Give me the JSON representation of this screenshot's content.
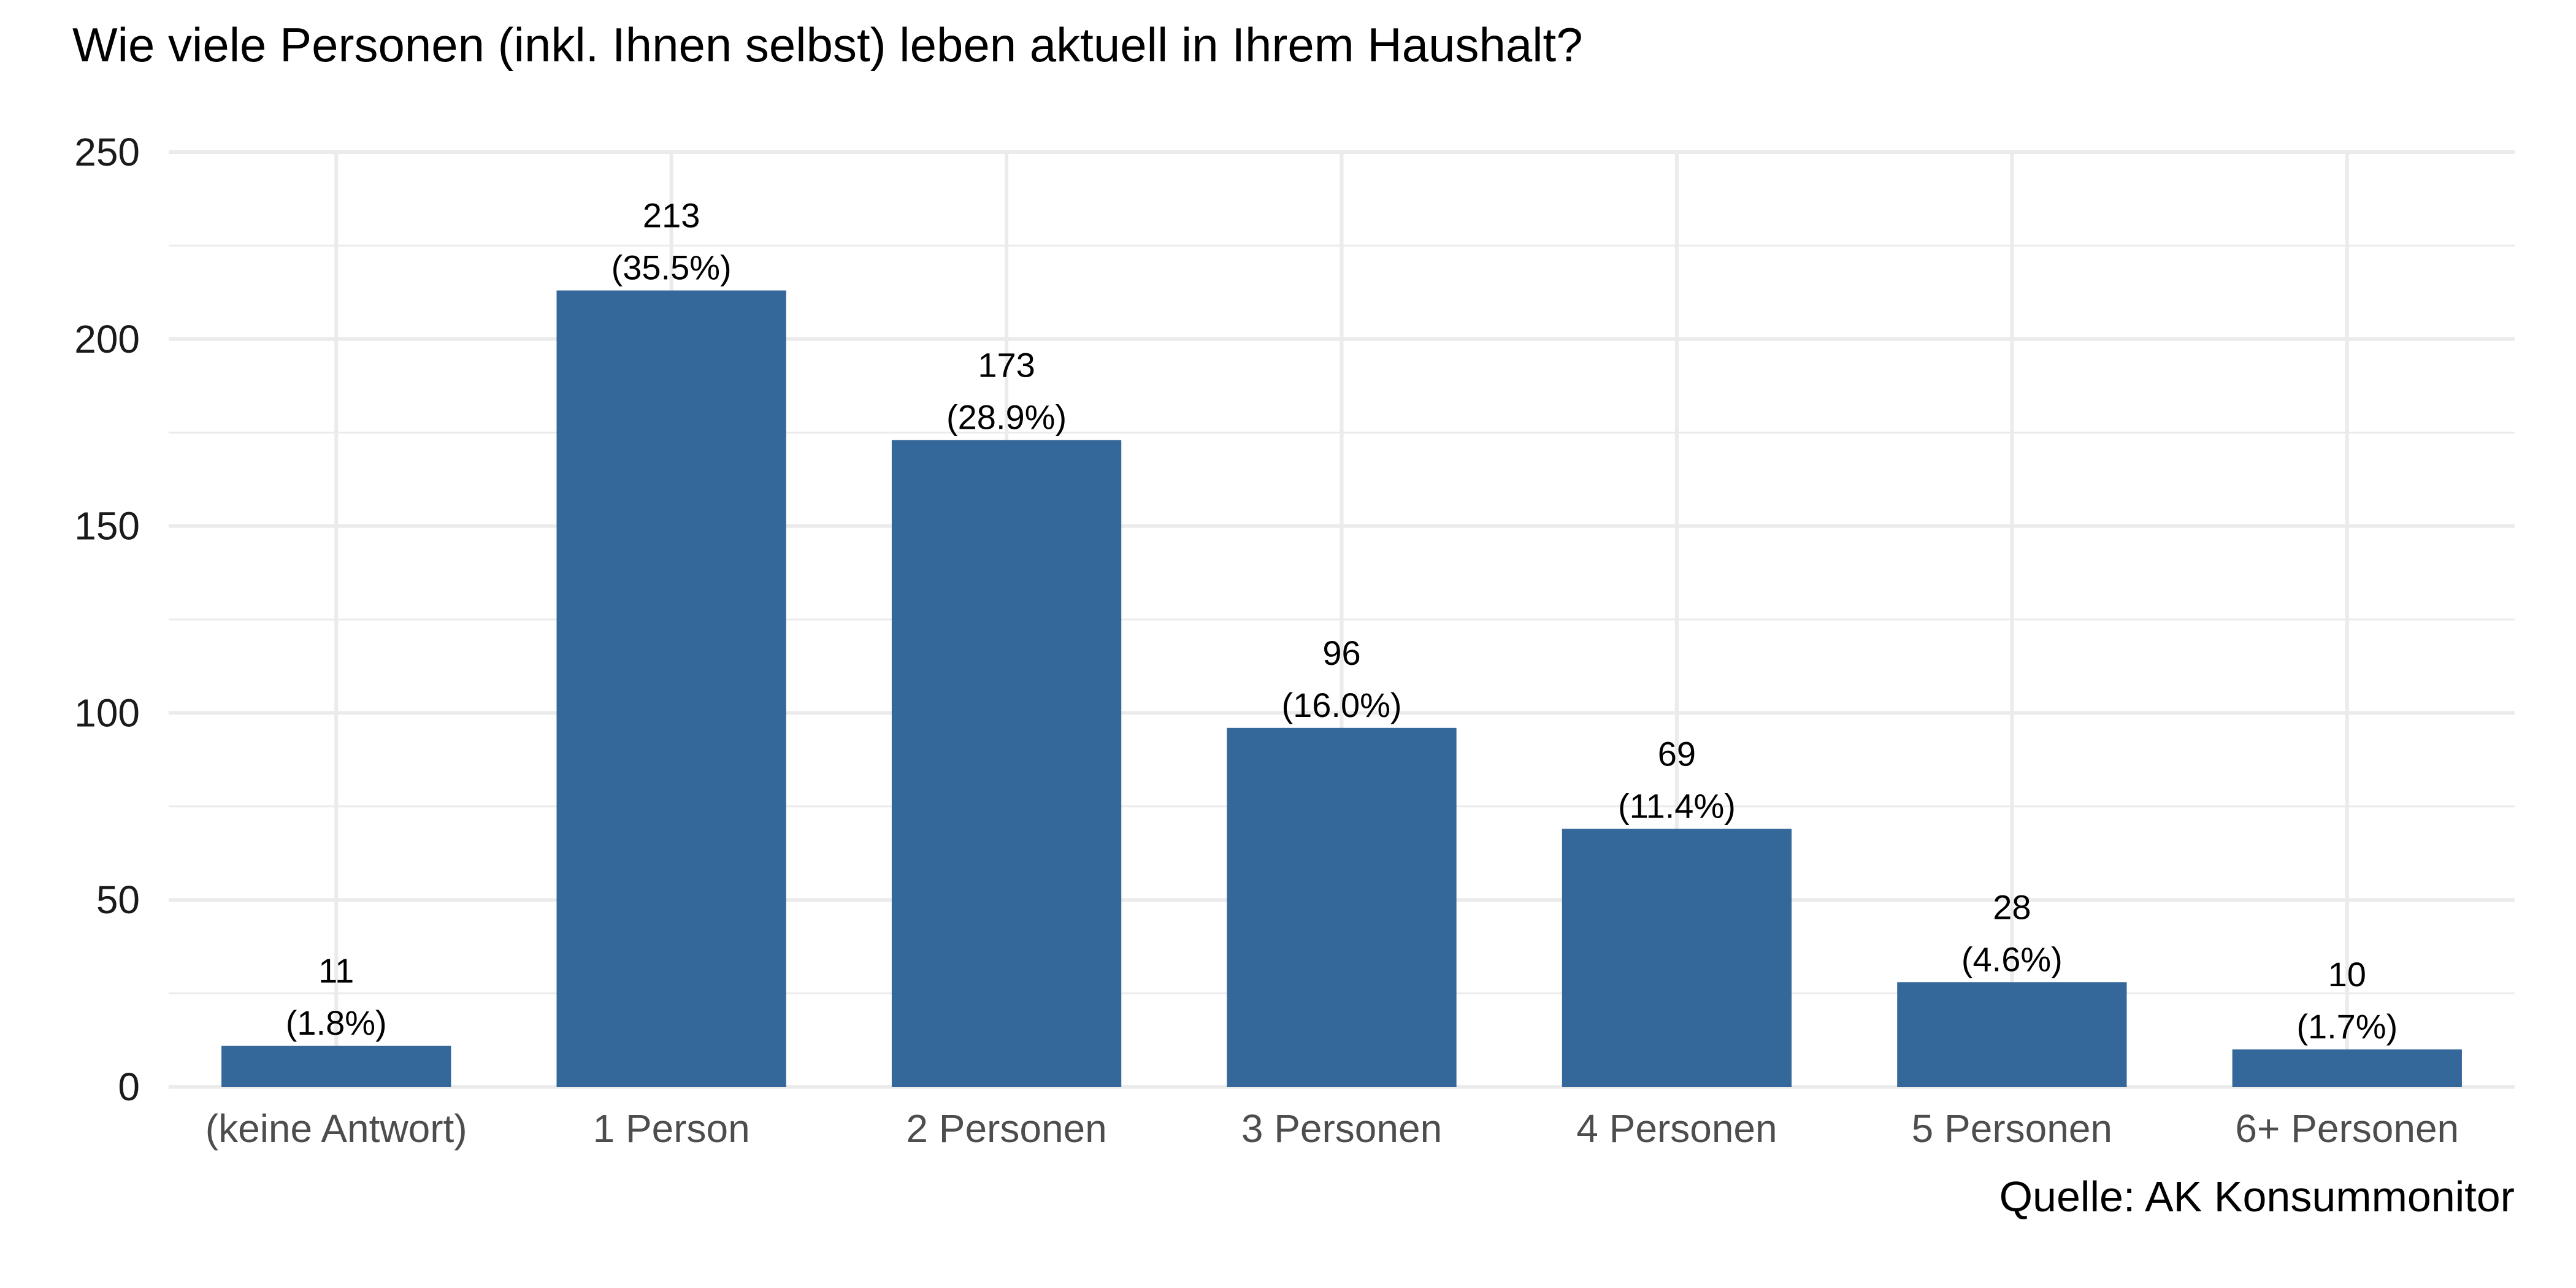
{
  "chart_data": {
    "type": "bar",
    "title": "Wie viele Personen (inkl. Ihnen selbst) leben aktuell in Ihrem Haushalt?",
    "caption": "Quelle: AK Konsummonitor",
    "categories": [
      "(keine Antwort)",
      "1 Person",
      "2 Personen",
      "3 Personen",
      "4 Personen",
      "5 Personen",
      "6+ Personen"
    ],
    "values": [
      11,
      213,
      173,
      96,
      69,
      28,
      10
    ],
    "percent_labels": [
      "(1.8%)",
      "(35.5%)",
      "(28.9%)",
      "(16.0%)",
      "(11.4%)",
      "(4.6%)",
      "(1.7%)"
    ],
    "ylim": [
      0,
      250
    ],
    "yticks": [
      0,
      50,
      100,
      150,
      200,
      250
    ],
    "xlabel": "",
    "ylabel": "",
    "grid": true,
    "legend": "none",
    "bar_color": "#35689a",
    "grid_color": "#ebebeb"
  }
}
